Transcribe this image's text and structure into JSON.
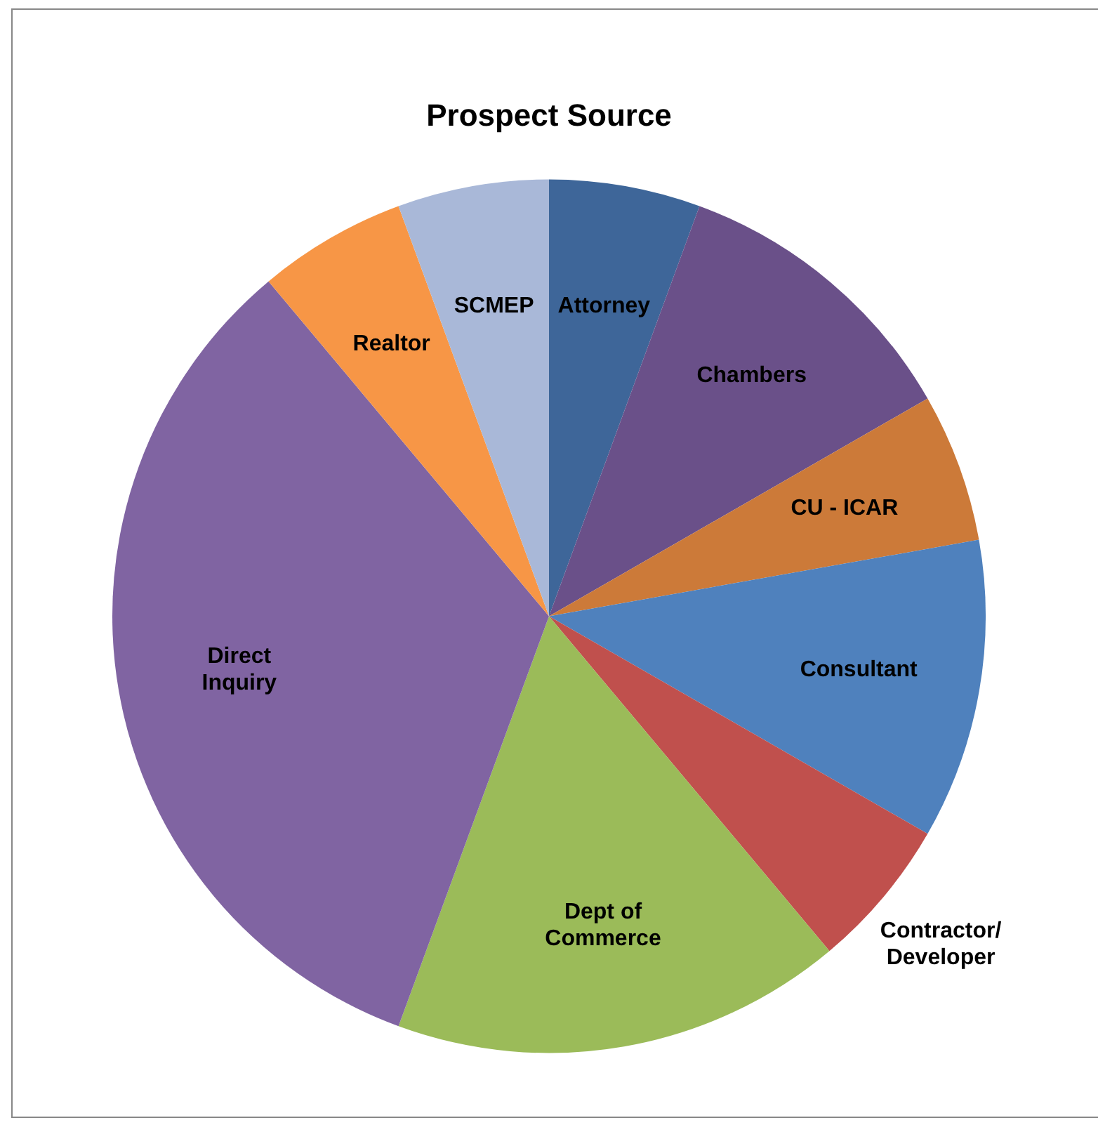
{
  "chart_data": {
    "type": "pie",
    "title": "Prospect Source",
    "categories": [
      "Attorney",
      "Chambers",
      "CU - ICAR",
      "Consultant",
      "Contractor/ Developer",
      "Dept of Commerce",
      "Direct Inquiry",
      "Realtor",
      "SCMEP"
    ],
    "values": [
      5.6,
      11.1,
      5.5,
      11.1,
      5.6,
      16.7,
      33.3,
      5.5,
      5.6
    ],
    "colors": [
      "#3e6699",
      "#6a5089",
      "#cc7a39",
      "#4f81bd",
      "#c0504d",
      "#9bbb59",
      "#8064a2",
      "#f79646",
      "#a9b8d8"
    ],
    "legend": false
  }
}
